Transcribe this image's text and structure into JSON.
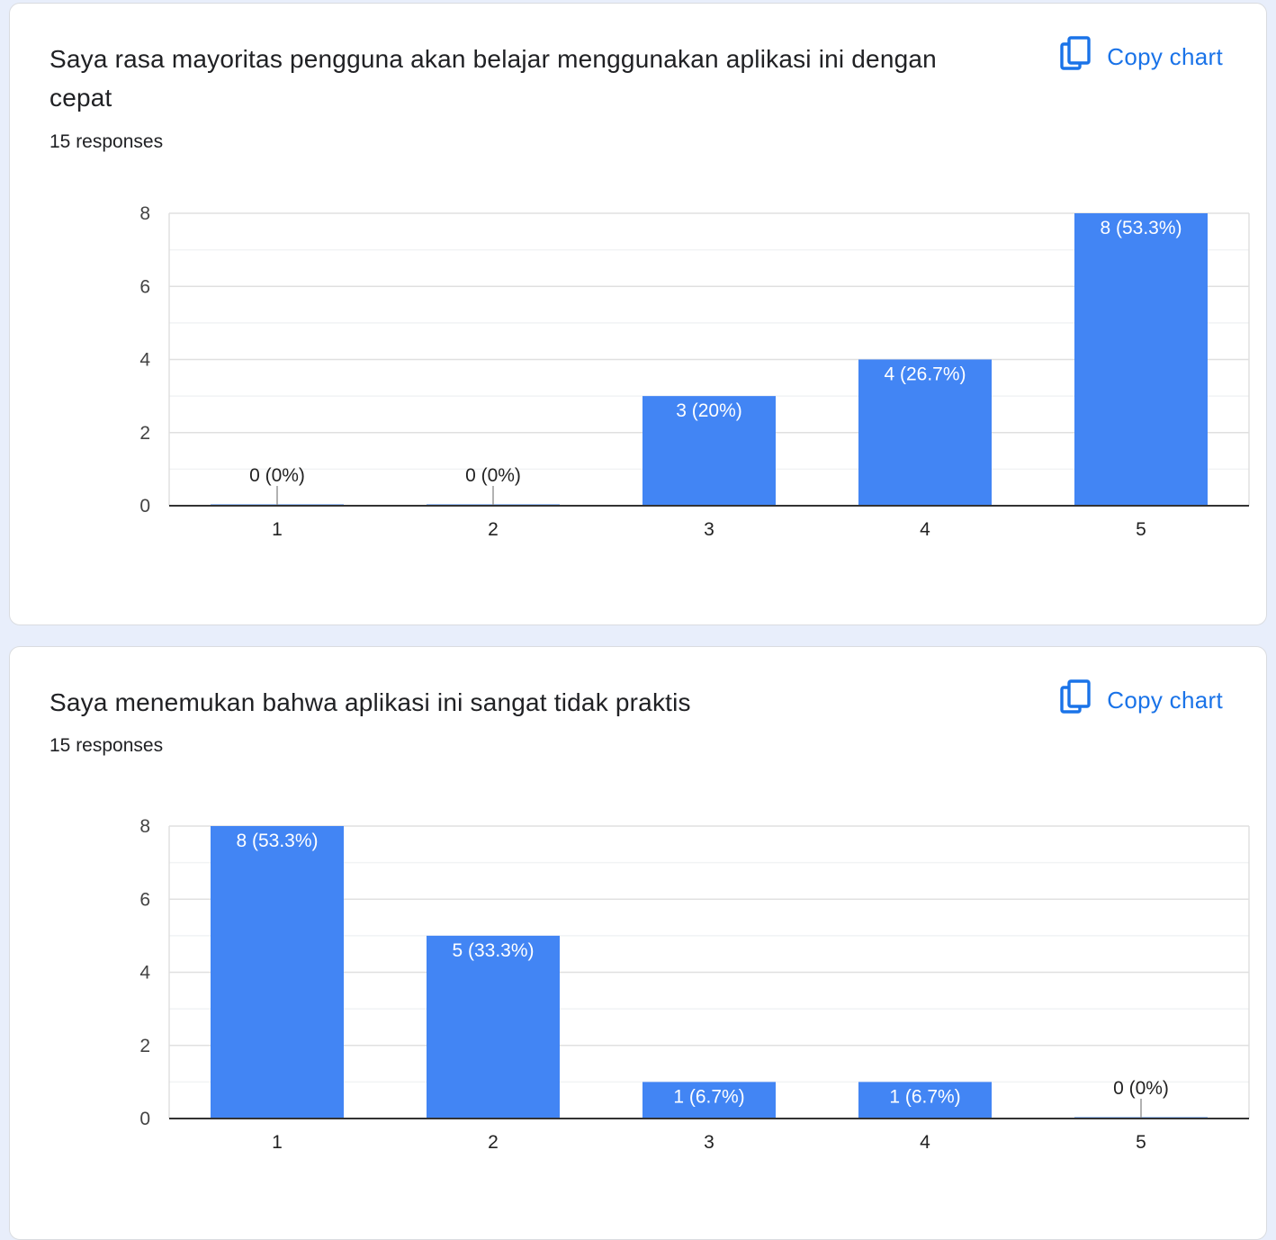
{
  "copy_label": "Copy chart",
  "accent_color": "#4285f4",
  "link_color": "#1a73e8",
  "icons": {
    "copy": "copy-icon"
  },
  "questions": [
    {
      "title": "Saya rasa mayoritas pengguna akan belajar menggunakan aplikasi ini dengan cepat",
      "responses": "15 responses"
    },
    {
      "title": "Saya menemukan bahwa aplikasi ini sangat tidak praktis",
      "responses": "15 responses"
    }
  ],
  "chart_data": [
    {
      "type": "bar",
      "categories": [
        "1",
        "2",
        "3",
        "4",
        "5"
      ],
      "values": [
        0,
        0,
        3,
        4,
        8
      ],
      "labels": [
        "0 (0%)",
        "0 (0%)",
        "3 (20%)",
        "4 (26.7%)",
        "8 (53.3%)"
      ],
      "yticks": [
        0,
        2,
        4,
        6,
        8
      ],
      "ylim": [
        0,
        8
      ],
      "grid": true,
      "color": "#4285f4"
    },
    {
      "type": "bar",
      "categories": [
        "1",
        "2",
        "3",
        "4",
        "5"
      ],
      "values": [
        8,
        5,
        1,
        1,
        0
      ],
      "labels": [
        "8 (53.3%)",
        "5 (33.3%)",
        "1 (6.7%)",
        "1 (6.7%)",
        "0 (0%)"
      ],
      "yticks": [
        0,
        2,
        4,
        6,
        8
      ],
      "ylim": [
        0,
        8
      ],
      "grid": true,
      "color": "#4285f4"
    }
  ]
}
